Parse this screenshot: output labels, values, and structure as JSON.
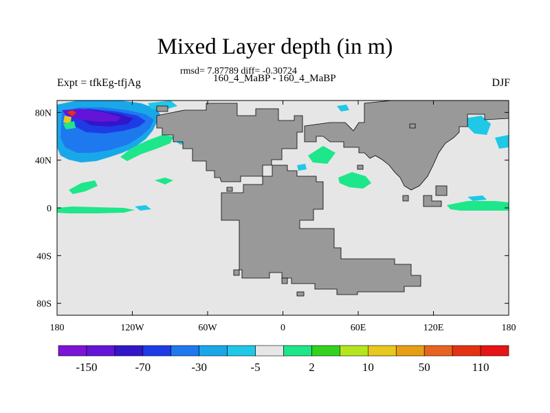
{
  "header": {
    "title": "Mixed Layer depth (in m)",
    "stats": "rmsd= 7.87789 diff= -0.30724",
    "cases": "160_4_MaBP - 160_4_MaBP",
    "expt": "Expt = tfkEg-tfjAg",
    "season": "DJF"
  },
  "axes": {
    "x_ticks": [
      {
        "value": -180,
        "label": "180"
      },
      {
        "value": -120,
        "label": "120W"
      },
      {
        "value": -60,
        "label": "60W"
      },
      {
        "value": 0,
        "label": "0"
      },
      {
        "value": 60,
        "label": "60E"
      },
      {
        "value": 120,
        "label": "120E"
      },
      {
        "value": 180,
        "label": "180"
      }
    ],
    "y_ticks": [
      {
        "value": 80,
        "label": "80N"
      },
      {
        "value": 40,
        "label": "40N"
      },
      {
        "value": 0,
        "label": "0"
      },
      {
        "value": -40,
        "label": "40S"
      },
      {
        "value": -80,
        "label": "80S"
      }
    ],
    "lon_range": [
      -180,
      180
    ],
    "lat_range": [
      -90,
      90
    ]
  },
  "colorbar": {
    "colors": [
      "#7c14d8",
      "#6414d8",
      "#3216c8",
      "#1e3ce6",
      "#1e78ee",
      "#18a8ea",
      "#1ec8e6",
      "#e6e6e6",
      "#1ee68a",
      "#32d21e",
      "#b4e61e",
      "#e6c81e",
      "#e69e14",
      "#e6641e",
      "#e63214",
      "#e61414"
    ],
    "labels": [
      {
        "boundary": 1,
        "text": "-150"
      },
      {
        "boundary": 3,
        "text": "-70"
      },
      {
        "boundary": 5,
        "text": "-30"
      },
      {
        "boundary": 7,
        "text": "-5"
      },
      {
        "boundary": 9,
        "text": "2"
      },
      {
        "boundary": 11,
        "text": "10"
      },
      {
        "boundary": 13,
        "text": "50"
      },
      {
        "boundary": 15,
        "text": "110"
      }
    ]
  },
  "map_colors": {
    "ocean": "#e6e6e6",
    "land": "#999999",
    "land_outline": "#000000"
  }
}
